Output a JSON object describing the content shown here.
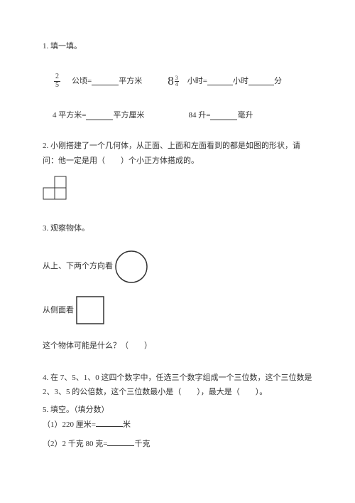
{
  "page": {
    "background_color": "#ffffff",
    "text_color": "#333333",
    "font_family": "SimSun",
    "base_fontsize": 11
  },
  "q1": {
    "title": "1. 填一填。",
    "row1": {
      "frac_num": "2",
      "frac_den": "5",
      "part1a": "公顷=",
      "part1b": "平方米",
      "mixed_whole": "8",
      "mixed_num": "3",
      "mixed_den": "4",
      "part2a": "小时=",
      "part2b": "小时",
      "part2c": "分"
    },
    "row2": {
      "part1a": "4 平方米=",
      "part1b": "平方厘米",
      "part2a": "84 升=",
      "part2b": "毫升"
    }
  },
  "q2": {
    "line1": "2. 小刚搭建了一个几何体，从正面、上面和左面看到的都是如图的形状，请",
    "line2": "问：他一定是用（　　）个小正方体搭成的。",
    "shape": {
      "type": "polyomino",
      "cell_size": 16,
      "stroke": "#333333",
      "stroke_width": 1,
      "cells": [
        [
          1,
          0
        ],
        [
          0,
          1
        ],
        [
          1,
          1
        ]
      ]
    }
  },
  "q3": {
    "title": "3. 观察物体。",
    "row1_label": "从上、下两个方向看",
    "row2_label": "从侧面看",
    "question": "这个物体可能是什么？（　　）",
    "circle": {
      "type": "circle",
      "r": 22,
      "stroke": "#333333",
      "stroke_width": 1.5,
      "fill": "none"
    },
    "square": {
      "type": "square",
      "size": 38,
      "stroke": "#333333",
      "stroke_width": 1.5,
      "fill": "none"
    }
  },
  "q4": {
    "line1": "4. 在 7、5、1、0 这四个数字中，任选三个数字组成一个三位数，这个三位数是",
    "line2": "2、3、5 的公倍数，这个三位数最小是（　　），最大是（　　）。"
  },
  "q5": {
    "title": "5. 填空。（填分数）",
    "item1a": "（1）220 厘米=",
    "item1b": "米",
    "item2a": "（2）2 千克 80 克=",
    "item2b": "千克"
  }
}
